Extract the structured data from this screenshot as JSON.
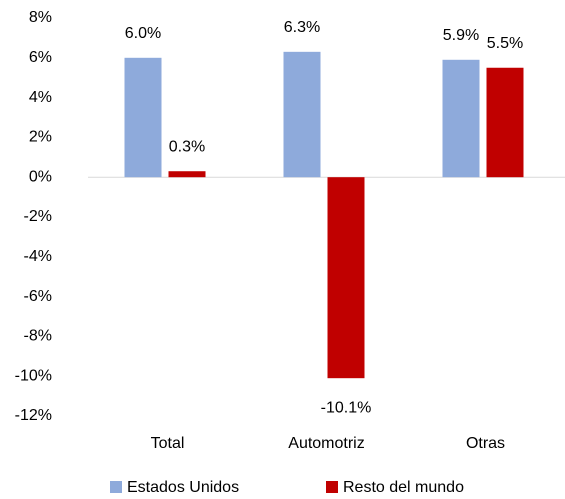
{
  "chart_data": {
    "type": "bar",
    "categories": [
      "Total",
      "Automotriz",
      "Otras"
    ],
    "series": [
      {
        "name": "Estados Unidos",
        "color": "#8eaadb",
        "values": [
          6.0,
          6.3,
          5.9
        ],
        "value_labels": [
          "6.0%",
          "6.3%",
          "5.9%"
        ]
      },
      {
        "name": "Resto del mundo",
        "color": "#c00000",
        "values": [
          0.3,
          -10.1,
          5.5
        ],
        "value_labels": [
          "0.3%",
          "-10.1%",
          "5.5%"
        ]
      }
    ],
    "ylim": [
      -12,
      8
    ],
    "yticks": [
      {
        "value": -12,
        "label": "-12%"
      },
      {
        "value": -10,
        "label": "-10%"
      },
      {
        "value": -8,
        "label": "-8%"
      },
      {
        "value": -6,
        "label": "-6%"
      },
      {
        "value": -4,
        "label": "-4%"
      },
      {
        "value": -2,
        "label": "-2%"
      },
      {
        "value": 0,
        "label": "0%"
      },
      {
        "value": 2,
        "label": "2%"
      },
      {
        "value": 4,
        "label": "4%"
      },
      {
        "value": 6,
        "label": "6%"
      },
      {
        "value": 8,
        "label": "8%"
      }
    ],
    "grid": false,
    "legend": "bottom"
  }
}
